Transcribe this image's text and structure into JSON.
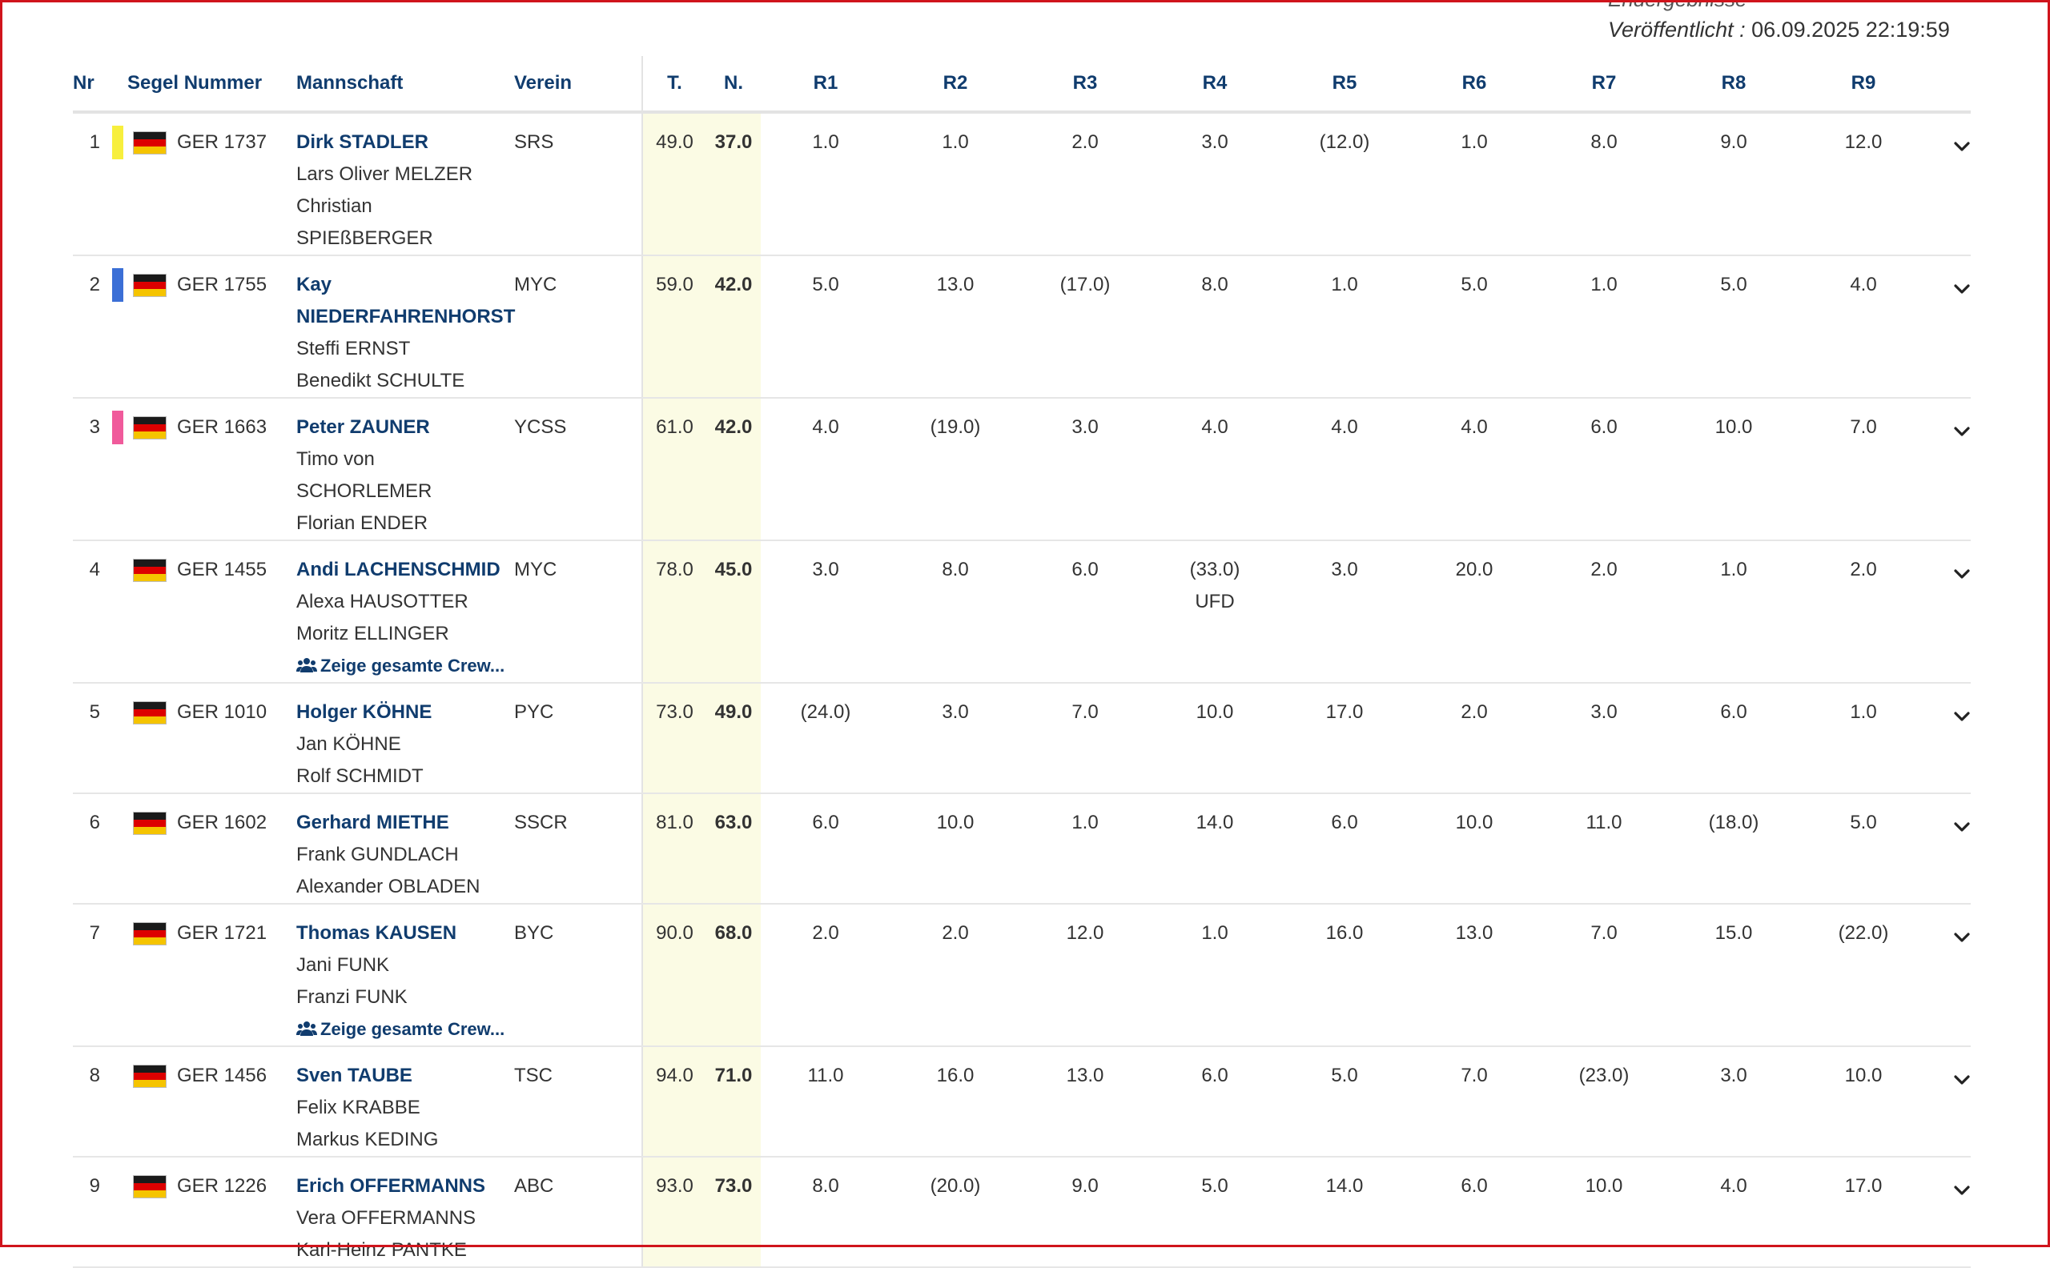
{
  "publication": {
    "heading": "Endergebnisse",
    "label": "Veröffentlicht :",
    "value": "06.09.2025 22:19:59"
  },
  "columns": {
    "nr": "Nr",
    "sail": "Segel Nummer",
    "team": "Mannschaft",
    "club": "Verein",
    "total": "T.",
    "net": "N.",
    "races": [
      "R1",
      "R2",
      "R3",
      "R4",
      "R5",
      "R6",
      "R7",
      "R8",
      "R9"
    ]
  },
  "show_crew_label": "Zeige gesamte Crew...",
  "icons": {
    "flag": "germany-flag-icon",
    "expand": "chevron-down-icon",
    "crew": "users-icon"
  },
  "colors": {
    "header_text": "#103c6e",
    "score_highlight": "#fbfbe4",
    "gold": "#f7ef3d",
    "silver": "#3b6fd6",
    "bronze": "#f05a9b"
  },
  "rows": [
    {
      "rank": "1",
      "marker": "#f7ef3d",
      "country": "GER",
      "sail": "GER 1737",
      "skipper": "Dirk STADLER",
      "crew": [
        "Lars Oliver MELZER",
        "Christian",
        "SPIEßBERGER"
      ],
      "show_more": false,
      "club": "SRS",
      "total": "49.0",
      "net": "37.0",
      "races": [
        "1.0",
        "1.0",
        "2.0",
        "3.0",
        "(12.0)",
        "1.0",
        "8.0",
        "9.0",
        "12.0"
      ],
      "race_notes": [
        "",
        "",
        "",
        "",
        "",
        "",
        "",
        "",
        ""
      ]
    },
    {
      "rank": "2",
      "marker": "#3b6fd6",
      "country": "GER",
      "sail": "GER 1755",
      "skipper": "Kay NIEDERFAHRENHORST",
      "crew": [
        "Steffi ERNST",
        "Benedikt SCHULTE"
      ],
      "show_more": false,
      "club": "MYC",
      "total": "59.0",
      "net": "42.0",
      "races": [
        "5.0",
        "13.0",
        "(17.0)",
        "8.0",
        "1.0",
        "5.0",
        "1.0",
        "5.0",
        "4.0"
      ],
      "race_notes": [
        "",
        "",
        "",
        "",
        "",
        "",
        "",
        "",
        ""
      ]
    },
    {
      "rank": "3",
      "marker": "#f05a9b",
      "country": "GER",
      "sail": "GER 1663",
      "skipper": "Peter ZAUNER",
      "crew": [
        "Timo von",
        "SCHORLEMER",
        "Florian ENDER"
      ],
      "show_more": false,
      "club": "YCSS",
      "total": "61.0",
      "net": "42.0",
      "races": [
        "4.0",
        "(19.0)",
        "3.0",
        "4.0",
        "4.0",
        "4.0",
        "6.0",
        "10.0",
        "7.0"
      ],
      "race_notes": [
        "",
        "",
        "",
        "",
        "",
        "",
        "",
        "",
        ""
      ]
    },
    {
      "rank": "4",
      "marker": "",
      "country": "GER",
      "sail": "GER 1455",
      "skipper": "Andi LACHENSCHMID",
      "crew": [
        "Alexa HAUSOTTER",
        "Moritz ELLINGER"
      ],
      "show_more": true,
      "club": "MYC",
      "total": "78.0",
      "net": "45.0",
      "races": [
        "3.0",
        "8.0",
        "6.0",
        "(33.0)",
        "3.0",
        "20.0",
        "2.0",
        "1.0",
        "2.0"
      ],
      "race_notes": [
        "",
        "",
        "",
        "UFD",
        "",
        "",
        "",
        "",
        ""
      ]
    },
    {
      "rank": "5",
      "marker": "",
      "country": "GER",
      "sail": "GER 1010",
      "skipper": "Holger KÖHNE",
      "crew": [
        "Jan KÖHNE",
        "Rolf SCHMIDT"
      ],
      "show_more": false,
      "club": "PYC",
      "total": "73.0",
      "net": "49.0",
      "races": [
        "(24.0)",
        "3.0",
        "7.0",
        "10.0",
        "17.0",
        "2.0",
        "3.0",
        "6.0",
        "1.0"
      ],
      "race_notes": [
        "",
        "",
        "",
        "",
        "",
        "",
        "",
        "",
        ""
      ]
    },
    {
      "rank": "6",
      "marker": "",
      "country": "GER",
      "sail": "GER 1602",
      "skipper": "Gerhard MIETHE",
      "crew": [
        "Frank GUNDLACH",
        "Alexander OBLADEN"
      ],
      "show_more": false,
      "club": "SSCR",
      "total": "81.0",
      "net": "63.0",
      "races": [
        "6.0",
        "10.0",
        "1.0",
        "14.0",
        "6.0",
        "10.0",
        "11.0",
        "(18.0)",
        "5.0"
      ],
      "race_notes": [
        "",
        "",
        "",
        "",
        "",
        "",
        "",
        "",
        ""
      ]
    },
    {
      "rank": "7",
      "marker": "",
      "country": "GER",
      "sail": "GER 1721",
      "skipper": "Thomas KAUSEN",
      "crew": [
        "Jani FUNK",
        "Franzi FUNK"
      ],
      "show_more": true,
      "club": "BYC",
      "total": "90.0",
      "net": "68.0",
      "races": [
        "2.0",
        "2.0",
        "12.0",
        "1.0",
        "16.0",
        "13.0",
        "7.0",
        "15.0",
        "(22.0)"
      ],
      "race_notes": [
        "",
        "",
        "",
        "",
        "",
        "",
        "",
        "",
        ""
      ]
    },
    {
      "rank": "8",
      "marker": "",
      "country": "GER",
      "sail": "GER 1456",
      "skipper": "Sven TAUBE",
      "crew": [
        "Felix KRABBE",
        "Markus KEDING"
      ],
      "show_more": false,
      "club": "TSC",
      "total": "94.0",
      "net": "71.0",
      "races": [
        "11.0",
        "16.0",
        "13.0",
        "6.0",
        "5.0",
        "7.0",
        "(23.0)",
        "3.0",
        "10.0"
      ],
      "race_notes": [
        "",
        "",
        "",
        "",
        "",
        "",
        "",
        "",
        ""
      ]
    },
    {
      "rank": "9",
      "marker": "",
      "country": "GER",
      "sail": "GER 1226",
      "skipper": "Erich OFFERMANNS",
      "crew": [
        "Vera OFFERMANNS",
        "Karl-Heinz PANTKE"
      ],
      "show_more": false,
      "club": "ABC",
      "total": "93.0",
      "net": "73.0",
      "races": [
        "8.0",
        "(20.0)",
        "9.0",
        "5.0",
        "14.0",
        "6.0",
        "10.0",
        "4.0",
        "17.0"
      ],
      "race_notes": [
        "",
        "",
        "",
        "",
        "",
        "",
        "",
        "",
        ""
      ]
    }
  ]
}
